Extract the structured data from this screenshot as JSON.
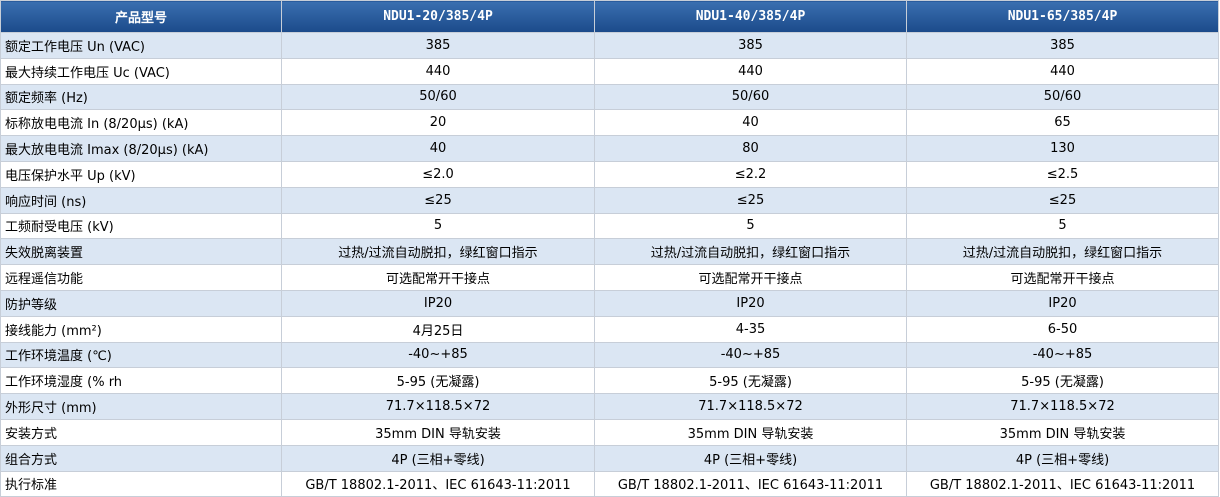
{
  "table": {
    "header": [
      "产品型号",
      "NDU1-20/385/4P",
      "NDU1-40/385/4P",
      "NDU1-65/385/4P"
    ],
    "rows": [
      [
        "额定工作电压 Un (VAC)",
        "385",
        "385",
        "385"
      ],
      [
        "最大持续工作电压 Uc (VAC)",
        "440",
        "440",
        "440"
      ],
      [
        "额定频率 (Hz)",
        "50/60",
        "50/60",
        "50/60"
      ],
      [
        "标称放电电流 In (8/20μs) (kA)",
        "20",
        "40",
        "65"
      ],
      [
        "最大放电电流 Imax (8/20μs) (kA)",
        "40",
        "80",
        "130"
      ],
      [
        "电压保护水平 Up (kV)",
        "≤2.0",
        "≤2.2",
        "≤2.5"
      ],
      [
        "响应时间 (ns)",
        "≤25",
        "≤25",
        "≤25"
      ],
      [
        "工频耐受电压 (kV)",
        "5",
        "5",
        "5"
      ],
      [
        "失效脱离装置",
        "过热/过流自动脱扣，绿红窗口指示",
        "过热/过流自动脱扣，绿红窗口指示",
        "过热/过流自动脱扣，绿红窗口指示"
      ],
      [
        "远程遥信功能",
        "可选配常开干接点",
        "可选配常开干接点",
        "可选配常开干接点"
      ],
      [
        "防护等级",
        "IP20",
        "IP20",
        "IP20"
      ],
      [
        "接线能力 (mm²)",
        "4月25日",
        "4-35",
        "6-50"
      ],
      [
        "工作环境温度 (℃)",
        "-40~+85",
        "-40~+85",
        "-40~+85"
      ],
      [
        "工作环境湿度 (% rh",
        "5-95 (无凝露)",
        "5-95 (无凝露)",
        "5-95 (无凝露)"
      ],
      [
        "外形尺寸 (mm)",
        "71.7×118.5×72",
        "71.7×118.5×72",
        "71.7×118.5×72"
      ],
      [
        "安装方式",
        "35mm DIN 导轨安装",
        "35mm DIN 导轨安装",
        "35mm DIN 导轨安装"
      ],
      [
        "组合方式",
        "4P (三相+零线)",
        "4P (三相+零线)",
        "4P (三相+零线)"
      ],
      [
        "执行标准",
        "GB/T 18802.1-2011、IEC 61643-11:2011",
        "GB/T 18802.1-2011、IEC 61643-11:2011",
        "GB/T 18802.1-2011、IEC 61643-11:2011"
      ]
    ]
  }
}
